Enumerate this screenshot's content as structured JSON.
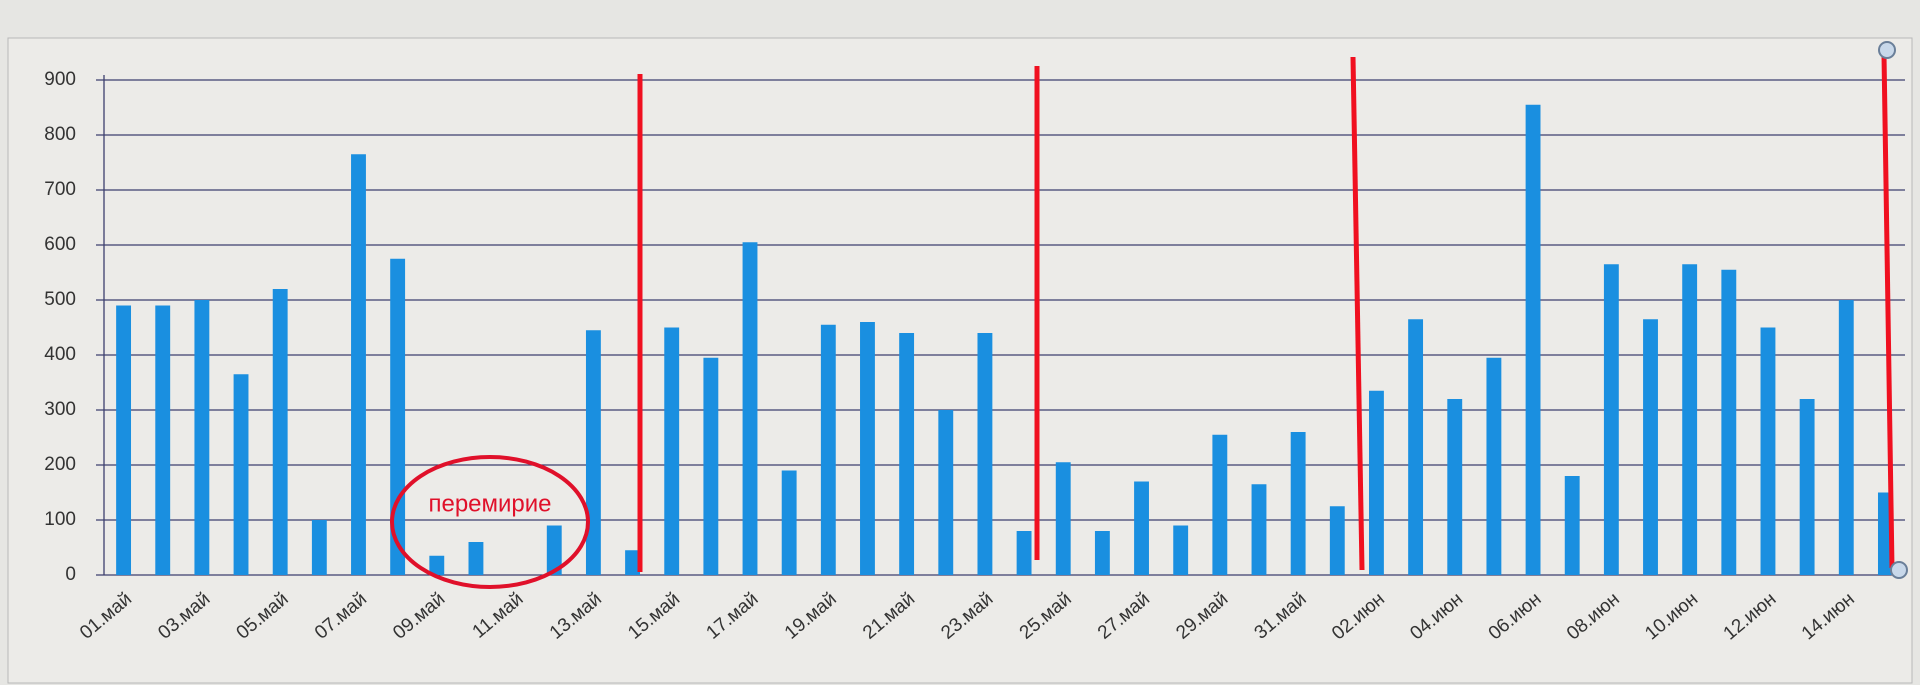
{
  "chart_data": {
    "type": "bar",
    "categories": [
      "01.май",
      null,
      "03.май",
      null,
      "05.май",
      null,
      "07.май",
      null,
      "09.май",
      null,
      "11.май",
      null,
      "13.май",
      null,
      "15.май",
      null,
      "17.май",
      null,
      "19.май",
      null,
      "21.май",
      null,
      "23.май",
      null,
      "25.май",
      null,
      "27.май",
      null,
      "29.май",
      null,
      "31.май",
      null,
      "02.июн",
      null,
      "04.июн",
      null,
      "06.июн",
      null,
      "08.июн",
      null,
      "10.июн",
      null,
      "12.июн",
      null,
      "14.июн",
      null
    ],
    "values": [
      490,
      490,
      500,
      365,
      520,
      100,
      765,
      575,
      35,
      60,
      0,
      90,
      445,
      45,
      450,
      395,
      605,
      190,
      455,
      460,
      440,
      300,
      440,
      80,
      205,
      80,
      170,
      90,
      255,
      165,
      260,
      125,
      335,
      465,
      320,
      395,
      855,
      180,
      565,
      465,
      565,
      555,
      450,
      320,
      500,
      150
    ],
    "color": "#1a8fe0",
    "ylim": [
      0,
      900
    ],
    "yticks": [
      0,
      100,
      200,
      300,
      400,
      500,
      600,
      700,
      800,
      900
    ],
    "grid": true,
    "annotation": "перемирие"
  }
}
